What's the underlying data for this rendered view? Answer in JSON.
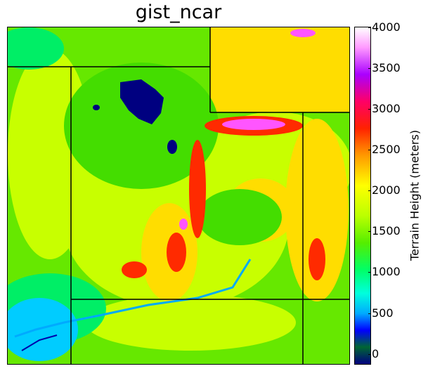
{
  "title": "gist_ncar",
  "colorbar": {
    "label": "Terrain Height (meters)",
    "ticks": [
      "4000",
      "3500",
      "3000",
      "2500",
      "2000",
      "1500",
      "1000",
      "500",
      "0"
    ]
  },
  "colors": {
    "high_peak": "#ff66ff",
    "high": "#ff2200",
    "upper": "#ffcc00",
    "mid": "#ccff00",
    "plain": "#66ee00",
    "low": "#00ff88",
    "valley": "#00ccff",
    "deep": "#0000cc",
    "lake": "#000080"
  }
}
